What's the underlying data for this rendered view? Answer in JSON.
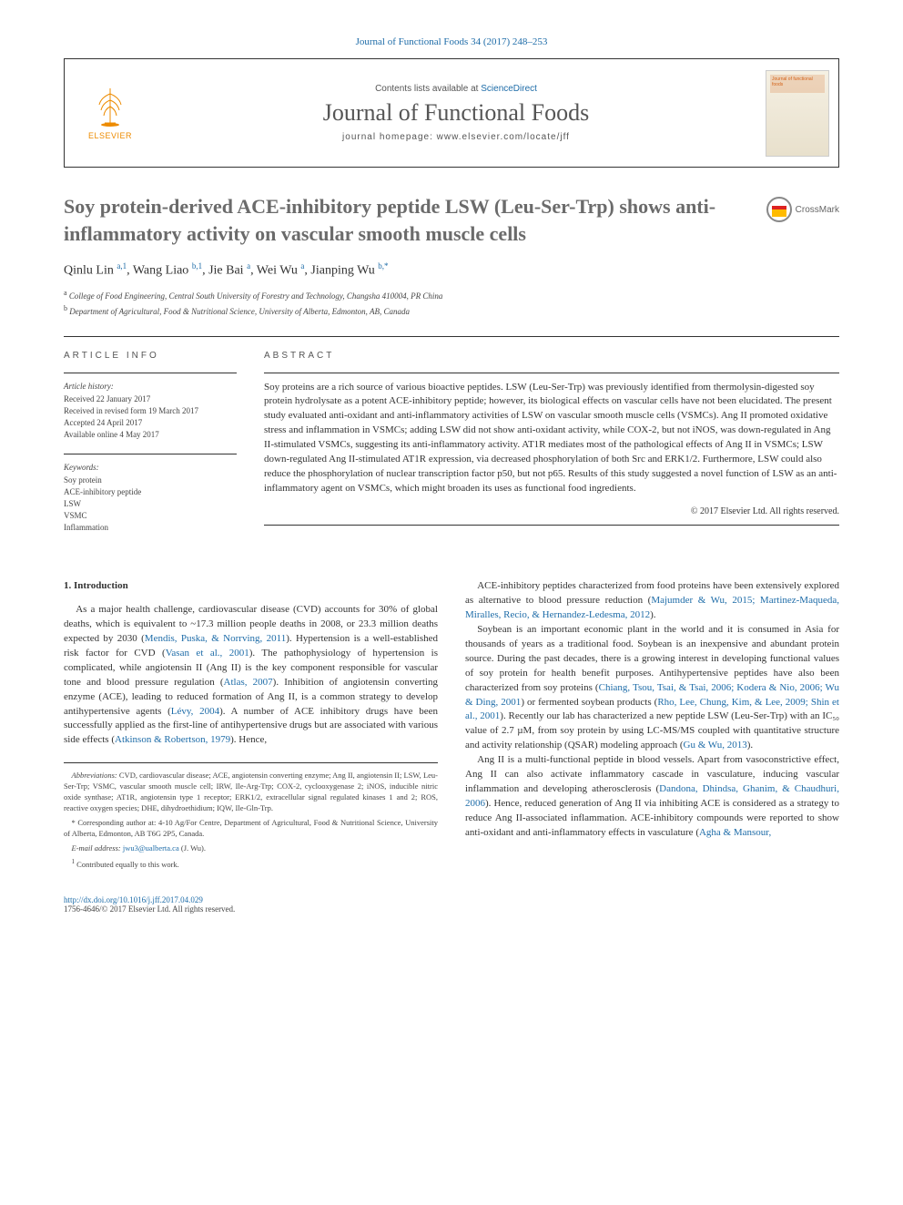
{
  "top_ref": "Journal of Functional Foods 34 (2017) 248–253",
  "header": {
    "contents_line_prefix": "Contents lists available at ",
    "contents_line_link": "ScienceDirect",
    "journal_name": "Journal of Functional Foods",
    "homepage_prefix": "journal homepage: ",
    "homepage_url": "www.elsevier.com/locate/jff",
    "logo_text": "ELSEVIER",
    "cover_text": "Journal of functional foods"
  },
  "title": "Soy protein-derived ACE-inhibitory peptide LSW (Leu-Ser-Trp) shows anti-inflammatory activity on vascular smooth muscle cells",
  "crossmark_label": "CrossMark",
  "authors_html": "Qinlu Lin <sup>a,1</sup>, Wang Liao <sup>b,1</sup>, Jie Bai <sup>a</sup>, Wei Wu <sup>a</sup>, Jianping Wu <sup>b,*</sup>",
  "affiliations": [
    "<sup>a</sup> College of Food Engineering, Central South University of Forestry and Technology, Changsha 410004, PR China",
    "<sup>b</sup> Department of Agricultural, Food & Nutritional Science, University of Alberta, Edmonton, AB, Canada"
  ],
  "article_info": {
    "heading": "ARTICLE INFO",
    "history_label": "Article history:",
    "history": [
      "Received 22 January 2017",
      "Received in revised form 19 March 2017",
      "Accepted 24 April 2017",
      "Available online 4 May 2017"
    ],
    "keywords_label": "Keywords:",
    "keywords": [
      "Soy protein",
      "ACE-inhibitory peptide",
      "LSW",
      "VSMC",
      "Inflammation"
    ]
  },
  "abstract": {
    "heading": "ABSTRACT",
    "text": "Soy proteins are a rich source of various bioactive peptides. LSW (Leu-Ser-Trp) was previously identified from thermolysin-digested soy protein hydrolysate as a potent ACE-inhibitory peptide; however, its biological effects on vascular cells have not been elucidated. The present study evaluated anti-oxidant and anti-inflammatory activities of LSW on vascular smooth muscle cells (VSMCs). Ang II promoted oxidative stress and inflammation in VSMCs; adding LSW did not show anti-oxidant activity, while COX-2, but not iNOS, was down-regulated in Ang II-stimulated VSMCs, suggesting its anti-inflammatory activity. AT1R mediates most of the pathological effects of Ang II in VSMCs; LSW down-regulated Ang II-stimulated AT1R expression, via decreased phosphorylation of both Src and ERK1/2. Furthermore, LSW could also reduce the phosphorylation of nuclear transcription factor p50, but not p65. Results of this study suggested a novel function of LSW as an anti-inflammatory agent on VSMCs, which might broaden its uses as functional food ingredients.",
    "copyright": "© 2017 Elsevier Ltd. All rights reserved."
  },
  "section1": {
    "heading": "1. Introduction",
    "p1": "As a major health challenge, cardiovascular disease (CVD) accounts for 30% of global deaths, which is equivalent to ~17.3 million people deaths in 2008, or 23.3 million deaths expected by 2030 (<a class='cite' href='#'>Mendis, Puska, & Norrving, 2011</a>). Hypertension is a well-established risk factor for CVD (<a class='cite' href='#'>Vasan et al., 2001</a>). The pathophysiology of hypertension is complicated, while angiotensin II (Ang II) is the key component responsible for vascular tone and blood pressure regulation (<a class='cite' href='#'>Atlas, 2007</a>). Inhibition of angiotensin converting enzyme (ACE), leading to reduced formation of Ang II, is a common strategy to develop antihypertensive agents (<a class='cite' href='#'>Lévy, 2004</a>). A number of ACE inhibitory drugs have been successfully applied as the first-line of antihypertensive drugs but are associated with various side effects (<a class='cite' href='#'>Atkinson & Robertson, 1979</a>). Hence,",
    "p2": "ACE-inhibitory peptides characterized from food proteins have been extensively explored as alternative to blood pressure reduction (<a class='cite' href='#'>Majumder & Wu, 2015; Martinez-Maqueda, Miralles, Recio, & Hernandez-Ledesma, 2012</a>).",
    "p3": "Soybean is an important economic plant in the world and it is consumed in Asia for thousands of years as a traditional food. Soybean is an inexpensive and abundant protein source. During the past decades, there is a growing interest in developing functional values of soy protein for health benefit purposes. Antihypertensive peptides have also been characterized from soy proteins (<a class='cite' href='#'>Chiang, Tsou, Tsai, & Tsai, 2006; Kodera & Nio, 2006; Wu & Ding, 2001</a>) or fermented soybean products (<a class='cite' href='#'>Rho, Lee, Chung, Kim, & Lee, 2009; Shin et al., 2001</a>). Recently our lab has characterized a new peptide LSW (Leu-Ser-Trp) with an IC₅₀ value of 2.7 µM, from soy protein by using LC-MS/MS coupled with quantitative structure and activity relationship (QSAR) modeling approach (<a class='cite' href='#'>Gu & Wu, 2013</a>).",
    "p4": "Ang II is a multi-functional peptide in blood vessels. Apart from vasoconstrictive effect, Ang II can also activate inflammatory cascade in vasculature, inducing vascular inflammation and developing atherosclerosis (<a class='cite' href='#'>Dandona, Dhindsa, Ghanim, & Chaudhuri, 2006</a>). Hence, reduced generation of Ang II via inhibiting ACE is considered as a strategy to reduce Ang II-associated inflammation. ACE-inhibitory compounds were reported to show anti-oxidant and anti-inflammatory effects in vasculature (<a class='cite' href='#'>Agha & Mansour,</a>"
  },
  "footnotes": {
    "abbrev_label": "Abbreviations:",
    "abbrev_text": "CVD, cardiovascular disease; ACE, angiotensin converting enzyme; Ang II, angiotensin II; LSW, Leu-Ser-Trp; VSMC, vascular smooth muscle cell; IRW, Ile-Arg-Trp; COX-2, cyclooxygenase 2; iNOS, inducible nitric oxide synthase; AT1R, angiotensin type 1 receptor; ERK1/2, extracellular signal regulated kinases 1 and 2; ROS, reactive oxygen species; DHE, dihydroethidium; IQW, Ile-Gln-Trp.",
    "corr_label": "* Corresponding author at:",
    "corr_text": "4-10 Ag/For Centre, Department of Agricultural, Food & Nutritional Science, University of Alberta, Edmonton, AB T6G 2P5, Canada.",
    "email_label": "E-mail address:",
    "email_value": "jwu3@ualberta.ca",
    "email_suffix": "(J. Wu).",
    "contrib_label": "1",
    "contrib_text": "Contributed equally to this work."
  },
  "footer": {
    "doi_url": "http://dx.doi.org/10.1016/j.jff.2017.04.029",
    "issn_line": "1756-4646/© 2017 Elsevier Ltd. All rights reserved."
  },
  "colors": {
    "link": "#1e6ca8",
    "text": "#333333",
    "heading_gray": "#6b6b6b",
    "elsevier_orange": "#ed8b00",
    "rule": "#333333",
    "background": "#ffffff"
  },
  "typography": {
    "title_fontsize": 22,
    "journal_name_fontsize": 26,
    "body_fontsize": 11,
    "info_fontsize": 9,
    "footnote_fontsize": 8.5
  }
}
